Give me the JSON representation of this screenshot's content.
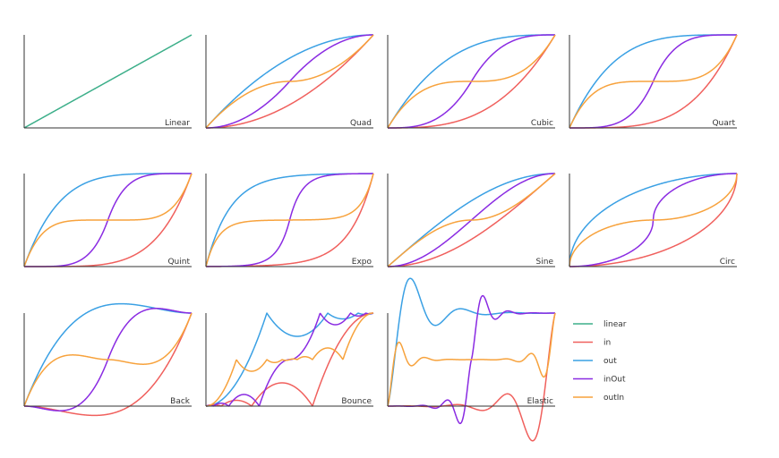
{
  "colors": {
    "linear": "#3daf8a",
    "in": "#f0605d",
    "out": "#3aa0e4",
    "inOut": "#8a2be2",
    "outIn": "#f7a23c",
    "axis": "#333333"
  },
  "legend": [
    {
      "key": "linear",
      "label": "linear"
    },
    {
      "key": "in",
      "label": "in"
    },
    {
      "key": "out",
      "label": "out"
    },
    {
      "key": "inOut",
      "label": "inOut"
    },
    {
      "key": "outIn",
      "label": "outIn"
    }
  ],
  "chart_data": [
    {
      "type": "line",
      "title": "Linear",
      "family": "linear",
      "series": [
        "linear"
      ],
      "xlim": [
        0,
        1
      ],
      "ylim": [
        0,
        1
      ],
      "grid": false
    },
    {
      "type": "line",
      "title": "Quad",
      "family": "quad",
      "series": [
        "in",
        "out",
        "inOut",
        "outIn"
      ],
      "xlim": [
        0,
        1
      ],
      "ylim": [
        0,
        1
      ],
      "grid": false
    },
    {
      "type": "line",
      "title": "Cubic",
      "family": "cubic",
      "series": [
        "in",
        "out",
        "inOut",
        "outIn"
      ],
      "xlim": [
        0,
        1
      ],
      "ylim": [
        0,
        1
      ],
      "grid": false
    },
    {
      "type": "line",
      "title": "Quart",
      "family": "quart",
      "series": [
        "in",
        "out",
        "inOut",
        "outIn"
      ],
      "xlim": [
        0,
        1
      ],
      "ylim": [
        0,
        1
      ],
      "grid": false
    },
    {
      "type": "line",
      "title": "Quint",
      "family": "quint",
      "series": [
        "in",
        "out",
        "inOut",
        "outIn"
      ],
      "xlim": [
        0,
        1
      ],
      "ylim": [
        0,
        1
      ],
      "grid": false
    },
    {
      "type": "line",
      "title": "Expo",
      "family": "expo",
      "series": [
        "in",
        "out",
        "inOut",
        "outIn"
      ],
      "xlim": [
        0,
        1
      ],
      "ylim": [
        0,
        1
      ],
      "grid": false
    },
    {
      "type": "line",
      "title": "Sine",
      "family": "sine",
      "series": [
        "in",
        "out",
        "inOut",
        "outIn"
      ],
      "xlim": [
        0,
        1
      ],
      "ylim": [
        0,
        1
      ],
      "grid": false
    },
    {
      "type": "line",
      "title": "Circ",
      "family": "circ",
      "series": [
        "in",
        "out",
        "inOut",
        "outIn"
      ],
      "xlim": [
        0,
        1
      ],
      "ylim": [
        0,
        1
      ],
      "grid": false
    },
    {
      "type": "line",
      "title": "Back",
      "family": "back",
      "series": [
        "in",
        "out",
        "inOut",
        "outIn"
      ],
      "xlim": [
        0,
        1
      ],
      "ylim": [
        0,
        1
      ],
      "grid": false
    },
    {
      "type": "line",
      "title": "Bounce",
      "family": "bounce",
      "series": [
        "in",
        "out",
        "inOut",
        "outIn"
      ],
      "xlim": [
        0,
        1
      ],
      "ylim": [
        0,
        1
      ],
      "grid": false
    },
    {
      "type": "line",
      "title": "Elastic",
      "family": "elastic",
      "series": [
        "in",
        "out",
        "inOut",
        "outIn"
      ],
      "xlim": [
        0,
        1
      ],
      "ylim": [
        0,
        1
      ],
      "grid": false
    }
  ]
}
